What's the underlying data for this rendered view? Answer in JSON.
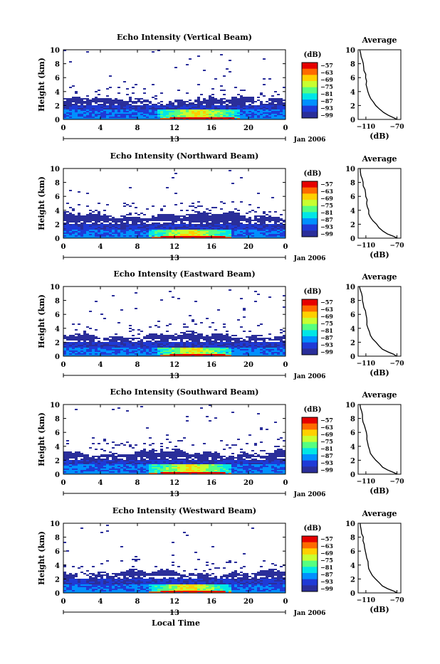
{
  "chart_data": {
    "type": "heatmap",
    "colorbar": {
      "label": "(dB)",
      "ticks": [
        "-57",
        "-63",
        "-69",
        "-75",
        "-81",
        "-87",
        "-93",
        "-99"
      ],
      "colors": [
        "#e60000",
        "#ff6a00",
        "#ffd000",
        "#c8ff30",
        "#55ff80",
        "#00e6e6",
        "#0090ff",
        "#1f3ad6",
        "#2a2e9a"
      ]
    },
    "ylabel": "Height (km)",
    "y_ticks": [
      "0",
      "2",
      "4",
      "6",
      "8",
      "10"
    ],
    "ylim": [
      0,
      10
    ],
    "x_ticks": [
      "0",
      "4",
      "8",
      "12",
      "16",
      "20",
      "0"
    ],
    "xlim": [
      0,
      24
    ],
    "date_label": "13",
    "month_year": "Jan 2006",
    "xlabel": "Local Time",
    "panels": [
      {
        "title": "Echo Intensity (Vertical Beam)",
        "layer_top_km": 2.9,
        "intense_layer_km": [
          0.3,
          1.4
        ],
        "intense_hours": [
          10,
          19
        ]
      },
      {
        "title": "Echo Intensity (Northward Beam)",
        "layer_top_km": 3.4,
        "intense_layer_km": [
          0.3,
          1.3
        ],
        "intense_hours": [
          9,
          18
        ]
      },
      {
        "title": "Echo Intensity (Eastward Beam)",
        "layer_top_km": 3.1,
        "intense_layer_km": [
          0.3,
          1.3
        ],
        "intense_hours": [
          10,
          18
        ]
      },
      {
        "title": "Echo Intensity (Southward Beam)",
        "layer_top_km": 3.2,
        "intense_layer_km": [
          0.3,
          1.4
        ],
        "intense_hours": [
          9,
          18
        ]
      },
      {
        "title": "Echo Intensity (Westward Beam)",
        "layer_top_km": 3.0,
        "intense_layer_km": [
          0.3,
          1.3
        ],
        "intense_hours": [
          9,
          18
        ]
      }
    ],
    "average_profile": {
      "title": "Average",
      "xlabel": "(dB)",
      "x_ticks": [
        "-110",
        "-70"
      ],
      "xlim": [
        -120,
        -65
      ],
      "heights_km": [
        0,
        0.3,
        0.6,
        1.0,
        1.5,
        2.0,
        2.5,
        3.0,
        3.5,
        4.0,
        4.5,
        5.0,
        5.5,
        6.0,
        6.5,
        7.0,
        7.5,
        8.0,
        8.5,
        9.0,
        9.5,
        10.0
      ],
      "values_db": [
        -70,
        -75,
        -82,
        -88,
        -93,
        -97,
        -101,
        -104,
        -106,
        -107,
        -108,
        -109,
        -109,
        -110,
        -111,
        -112,
        -113,
        -114,
        -115,
        -116,
        -117,
        -118
      ]
    }
  }
}
